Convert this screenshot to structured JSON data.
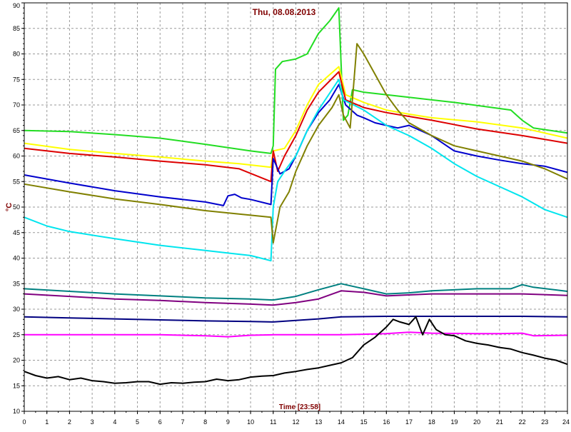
{
  "chart_data": {
    "type": "line",
    "title": "Thu, 08.08.2013",
    "xlabel": "Time [23:58]",
    "ylabel": "°C",
    "xlim": [
      0,
      24
    ],
    "ylim": [
      10,
      90
    ],
    "x_ticks": [
      "0",
      "1",
      "2",
      "3",
      "4",
      "5",
      "6",
      "7",
      "8",
      "9",
      "10",
      "11",
      "12",
      "13",
      "14",
      "15",
      "16",
      "17",
      "18",
      "19",
      "20",
      "21",
      "22",
      "23",
      "24"
    ],
    "y_ticks": [
      "10",
      "15",
      "20",
      "25",
      "30",
      "35",
      "40",
      "45",
      "50",
      "55",
      "60",
      "65",
      "70",
      "75",
      "80",
      "85",
      "90"
    ],
    "grid": true,
    "legend": "none",
    "series": [
      {
        "color": "#22dd22",
        "points": [
          [
            0,
            65
          ],
          [
            2,
            64.8
          ],
          [
            4,
            64.2
          ],
          [
            6,
            63.5
          ],
          [
            8,
            62.3
          ],
          [
            10,
            61
          ],
          [
            10.9,
            60.5
          ],
          [
            11,
            62
          ],
          [
            11.1,
            77
          ],
          [
            11.4,
            78.5
          ],
          [
            12,
            79
          ],
          [
            12.5,
            80
          ],
          [
            13,
            84
          ],
          [
            13.5,
            86.5
          ],
          [
            13.9,
            89
          ],
          [
            14.1,
            67
          ],
          [
            14.3,
            68
          ],
          [
            14.5,
            73
          ],
          [
            15,
            72.5
          ],
          [
            17,
            71.5
          ],
          [
            19,
            70.5
          ],
          [
            21.5,
            69
          ],
          [
            22,
            67
          ],
          [
            22.5,
            65.5
          ],
          [
            24,
            64.5
          ]
        ]
      },
      {
        "color": "#ffff00",
        "points": [
          [
            0,
            62.5
          ],
          [
            2,
            61.3
          ],
          [
            4,
            60.5
          ],
          [
            6,
            59.8
          ],
          [
            8,
            59
          ],
          [
            9.5,
            58.5
          ],
          [
            10.9,
            57.8
          ],
          [
            11,
            61
          ],
          [
            11.5,
            61.5
          ],
          [
            12,
            65
          ],
          [
            12.5,
            70
          ],
          [
            13,
            74
          ],
          [
            13.9,
            77.5
          ],
          [
            14.2,
            72
          ],
          [
            15,
            70.5
          ],
          [
            16,
            69
          ],
          [
            17,
            68.2
          ],
          [
            18,
            67.5
          ],
          [
            20,
            66.7
          ],
          [
            22,
            65.5
          ],
          [
            24,
            63.5
          ]
        ]
      },
      {
        "color": "#dd0000",
        "points": [
          [
            0,
            61.5
          ],
          [
            2,
            60.5
          ],
          [
            4,
            59.8
          ],
          [
            6,
            59
          ],
          [
            8,
            58.3
          ],
          [
            9.5,
            57.5
          ],
          [
            10.9,
            55
          ],
          [
            11,
            61
          ],
          [
            11.2,
            57
          ],
          [
            11.5,
            60
          ],
          [
            12,
            64
          ],
          [
            12.5,
            69
          ],
          [
            13,
            72.5
          ],
          [
            13.9,
            76.5
          ],
          [
            14.2,
            71
          ],
          [
            15,
            69.5
          ],
          [
            16,
            68.5
          ],
          [
            18,
            67
          ],
          [
            20,
            65.3
          ],
          [
            22,
            64
          ],
          [
            24,
            62.5
          ]
        ]
      },
      {
        "color": "#0000cc",
        "points": [
          [
            0,
            56.3
          ],
          [
            2,
            54.7
          ],
          [
            4,
            53.2
          ],
          [
            6,
            52
          ],
          [
            8,
            51
          ],
          [
            8.8,
            50.3
          ],
          [
            9,
            52.2
          ],
          [
            9.3,
            52.5
          ],
          [
            9.6,
            51.8
          ],
          [
            10,
            51.5
          ],
          [
            10.9,
            50.5
          ],
          [
            11,
            59.5
          ],
          [
            11.3,
            56.5
          ],
          [
            11.7,
            57.5
          ],
          [
            12,
            60
          ],
          [
            12.5,
            65
          ],
          [
            13,
            68.5
          ],
          [
            13.5,
            71
          ],
          [
            13.9,
            74
          ],
          [
            14.2,
            70
          ],
          [
            14.7,
            68
          ],
          [
            15,
            67.5
          ],
          [
            15.5,
            66.5
          ],
          [
            16,
            66
          ],
          [
            16.5,
            65.5
          ],
          [
            17,
            66
          ],
          [
            18,
            64
          ],
          [
            19,
            61
          ],
          [
            20,
            60
          ],
          [
            21,
            59.2
          ],
          [
            22,
            58.5
          ],
          [
            23,
            58
          ],
          [
            24,
            56.8
          ]
        ]
      },
      {
        "color": "#00e5ee",
        "points": [
          [
            0,
            48
          ],
          [
            1,
            46.3
          ],
          [
            2,
            45.2
          ],
          [
            4,
            43.8
          ],
          [
            6,
            42.5
          ],
          [
            8,
            41.5
          ],
          [
            9,
            41
          ],
          [
            10,
            40.5
          ],
          [
            10.9,
            39.5
          ],
          [
            11,
            50
          ],
          [
            11.2,
            55
          ],
          [
            11.5,
            57
          ],
          [
            12,
            60
          ],
          [
            12.5,
            65
          ],
          [
            13,
            69
          ],
          [
            13.9,
            75
          ],
          [
            14.1,
            71
          ],
          [
            15,
            69
          ],
          [
            16,
            66
          ],
          [
            17,
            64
          ],
          [
            18,
            61.5
          ],
          [
            19,
            58.5
          ],
          [
            20,
            56
          ],
          [
            21,
            54
          ],
          [
            22,
            52
          ],
          [
            23,
            49.5
          ],
          [
            24,
            48
          ]
        ]
      },
      {
        "color": "#808000",
        "points": [
          [
            0,
            54.5
          ],
          [
            2,
            53
          ],
          [
            4,
            51.6
          ],
          [
            6,
            50.5
          ],
          [
            8,
            49.3
          ],
          [
            10,
            48.4
          ],
          [
            10.9,
            48
          ],
          [
            11,
            43
          ],
          [
            11.3,
            50
          ],
          [
            11.7,
            53
          ],
          [
            12,
            57
          ],
          [
            12.5,
            62
          ],
          [
            13,
            66
          ],
          [
            13.6,
            69.5
          ],
          [
            13.9,
            72
          ],
          [
            14.1,
            68
          ],
          [
            14.4,
            65.5
          ],
          [
            14.7,
            82
          ],
          [
            15,
            80
          ],
          [
            15.5,
            76
          ],
          [
            16,
            72
          ],
          [
            16.5,
            69
          ],
          [
            17,
            66.5
          ],
          [
            18,
            64
          ],
          [
            19,
            62
          ],
          [
            20,
            61
          ],
          [
            21,
            60
          ],
          [
            22,
            59
          ],
          [
            23,
            57.5
          ],
          [
            24,
            55.5
          ]
        ]
      },
      {
        "color": "#008080",
        "points": [
          [
            0,
            34
          ],
          [
            2,
            33.5
          ],
          [
            4,
            33
          ],
          [
            6,
            32.6
          ],
          [
            8,
            32.2
          ],
          [
            10,
            32
          ],
          [
            11,
            31.8
          ],
          [
            12,
            32.5
          ],
          [
            13,
            33.8
          ],
          [
            14,
            35
          ],
          [
            15,
            34
          ],
          [
            16,
            33
          ],
          [
            17,
            33.2
          ],
          [
            18,
            33.6
          ],
          [
            20,
            34
          ],
          [
            21.5,
            34
          ],
          [
            22,
            34.8
          ],
          [
            22.5,
            34.3
          ],
          [
            24,
            33.5
          ]
        ]
      },
      {
        "color": "#800080",
        "points": [
          [
            0,
            33
          ],
          [
            2,
            32.5
          ],
          [
            4,
            32
          ],
          [
            6,
            31.7
          ],
          [
            8,
            31.3
          ],
          [
            10,
            31
          ],
          [
            11,
            30.8
          ],
          [
            12,
            31.3
          ],
          [
            13,
            32
          ],
          [
            14,
            33.6
          ],
          [
            15,
            33.3
          ],
          [
            16,
            32.6
          ],
          [
            17,
            32.8
          ],
          [
            18,
            33
          ],
          [
            20,
            33
          ],
          [
            22,
            33
          ],
          [
            24,
            32.7
          ]
        ]
      },
      {
        "color": "#000080",
        "points": [
          [
            0,
            28.5
          ],
          [
            2,
            28.3
          ],
          [
            4,
            28.1
          ],
          [
            6,
            27.9
          ],
          [
            8,
            27.7
          ],
          [
            10,
            27.6
          ],
          [
            11,
            27.5
          ],
          [
            12,
            27.8
          ],
          [
            13,
            28.1
          ],
          [
            14,
            28.5
          ],
          [
            16,
            28.6
          ],
          [
            18,
            28.6
          ],
          [
            20,
            28.6
          ],
          [
            22,
            28.6
          ],
          [
            24,
            28.5
          ]
        ]
      },
      {
        "color": "#ff00ff",
        "points": [
          [
            0,
            25
          ],
          [
            2,
            25
          ],
          [
            4,
            25
          ],
          [
            6,
            25
          ],
          [
            8,
            24.8
          ],
          [
            9,
            24.6
          ],
          [
            10,
            24.9
          ],
          [
            11,
            25
          ],
          [
            12,
            25
          ],
          [
            13,
            25
          ],
          [
            14,
            25
          ],
          [
            16,
            25.2
          ],
          [
            17,
            25.5
          ],
          [
            18,
            25.3
          ],
          [
            20,
            25.2
          ],
          [
            21,
            25.2
          ],
          [
            22,
            25.3
          ],
          [
            22.5,
            24.8
          ],
          [
            24,
            24.9
          ]
        ]
      },
      {
        "color": "#000000",
        "points": [
          [
            0,
            17.8
          ],
          [
            0.5,
            17
          ],
          [
            1,
            16.5
          ],
          [
            1.5,
            16.8
          ],
          [
            2,
            16.2
          ],
          [
            2.5,
            16.5
          ],
          [
            3,
            16
          ],
          [
            3.5,
            15.8
          ],
          [
            4,
            15.5
          ],
          [
            4.5,
            15.6
          ],
          [
            5,
            15.8
          ],
          [
            5.5,
            15.8
          ],
          [
            6,
            15.3
          ],
          [
            6.5,
            15.6
          ],
          [
            7,
            15.5
          ],
          [
            7.5,
            15.7
          ],
          [
            8,
            15.8
          ],
          [
            8.5,
            16.3
          ],
          [
            9,
            16
          ],
          [
            9.5,
            16.2
          ],
          [
            10,
            16.7
          ],
          [
            10.5,
            16.9
          ],
          [
            11,
            17
          ],
          [
            11.5,
            17.5
          ],
          [
            12,
            17.8
          ],
          [
            12.5,
            18.2
          ],
          [
            13,
            18.5
          ],
          [
            13.5,
            19
          ],
          [
            14,
            19.5
          ],
          [
            14.5,
            20.5
          ],
          [
            15,
            23
          ],
          [
            15.5,
            24.5
          ],
          [
            16,
            26.5
          ],
          [
            16.3,
            28
          ],
          [
            16.6,
            27.5
          ],
          [
            17,
            27
          ],
          [
            17.3,
            28.5
          ],
          [
            17.6,
            25
          ],
          [
            17.9,
            28
          ],
          [
            18.2,
            26
          ],
          [
            18.6,
            25
          ],
          [
            19,
            24.8
          ],
          [
            19.5,
            23.8
          ],
          [
            20,
            23.3
          ],
          [
            20.5,
            23
          ],
          [
            21,
            22.5
          ],
          [
            21.5,
            22.2
          ],
          [
            22,
            21.5
          ],
          [
            22.5,
            21
          ],
          [
            23,
            20.4
          ],
          [
            23.5,
            20
          ],
          [
            24,
            19.2
          ]
        ]
      }
    ]
  }
}
